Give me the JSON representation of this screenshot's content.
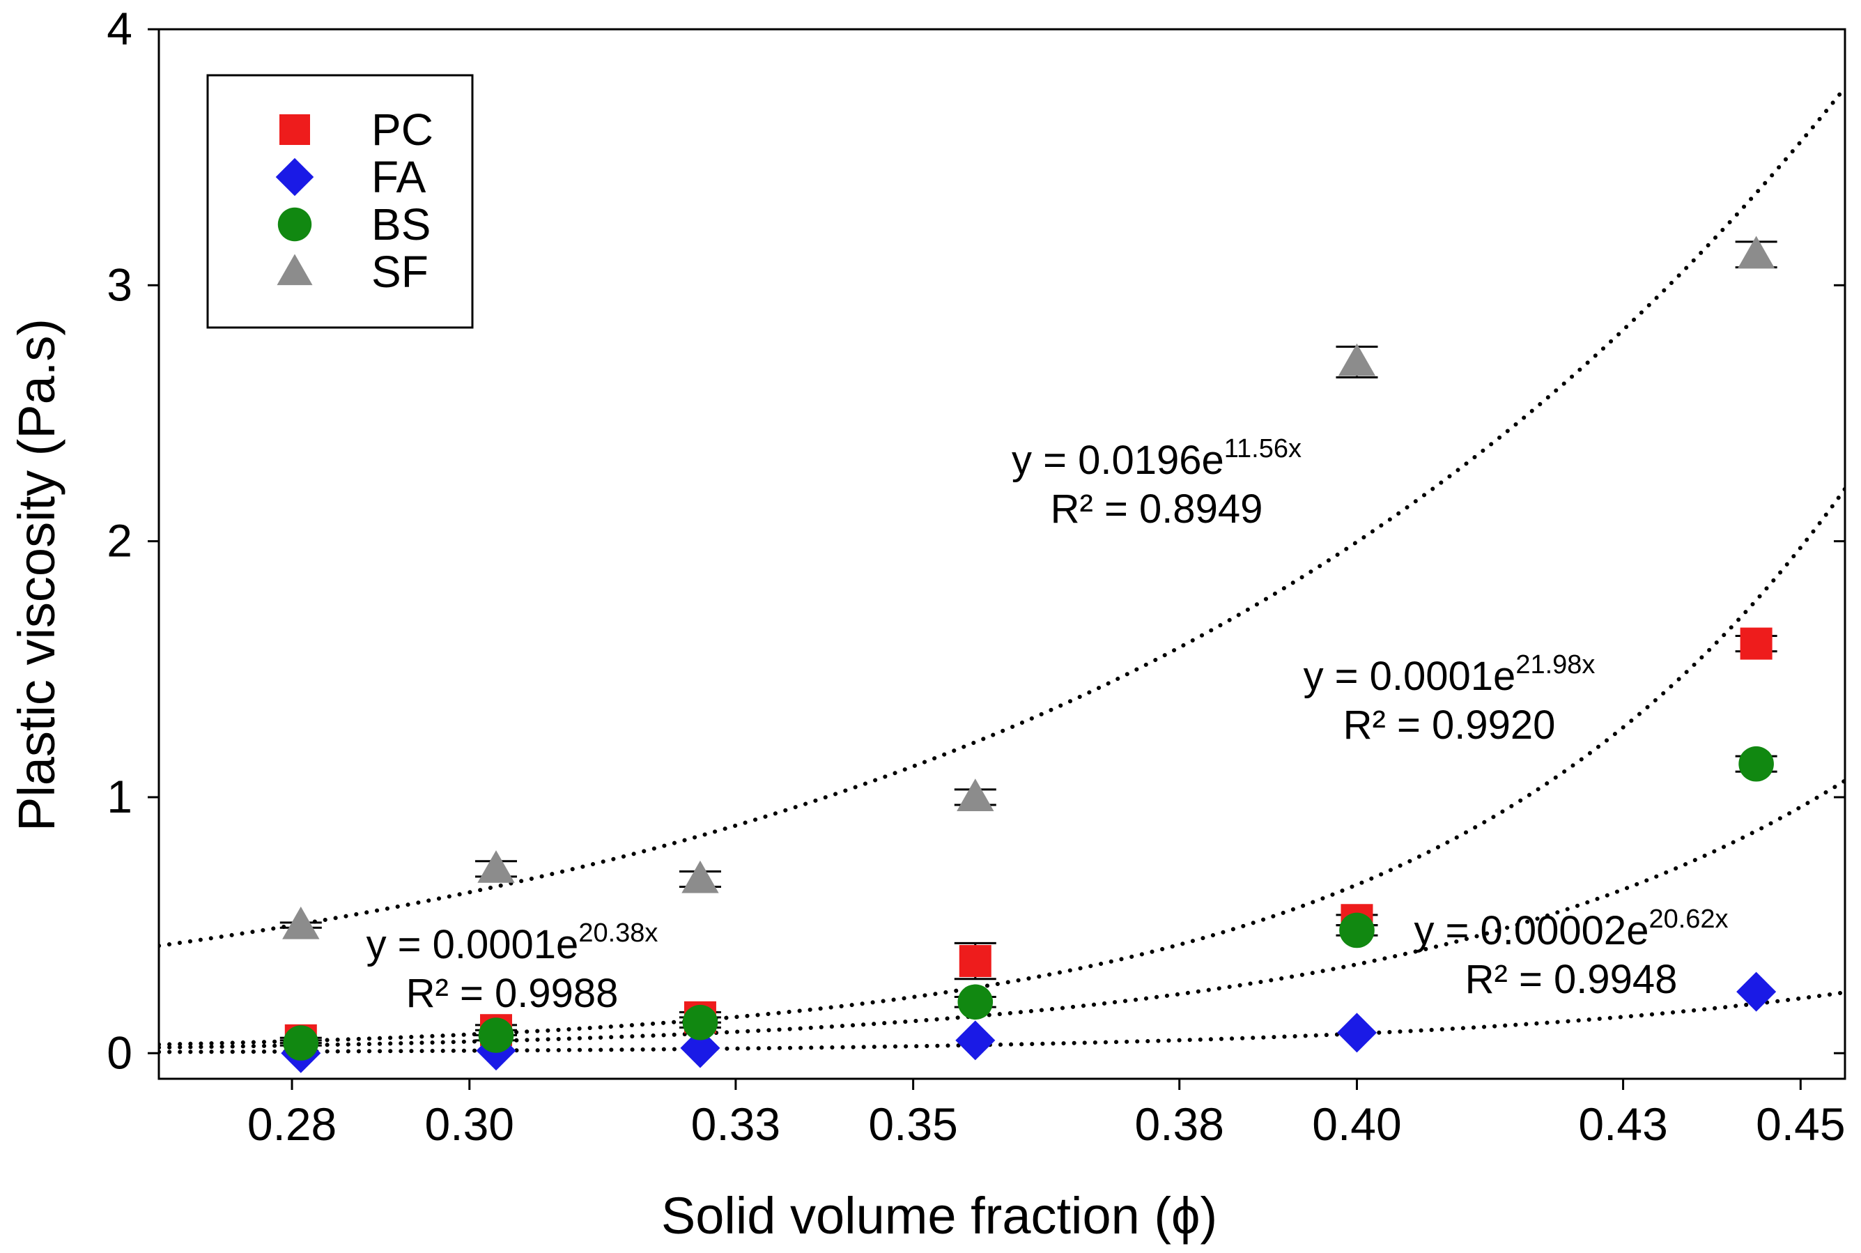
{
  "chart_data": {
    "type": "scatter",
    "title": "",
    "xlabel": "Solid volume fraction (ϕ)",
    "ylabel": "Plastic viscosity (Pa.s)",
    "xlim": [
      0.265,
      0.455
    ],
    "ylim": [
      -0.1,
      4.0
    ],
    "x_ticks": [
      0.28,
      0.3,
      0.33,
      0.35,
      0.38,
      0.4,
      0.43,
      0.45
    ],
    "x_tick_labels": [
      "0.28",
      "0.30",
      "0.33",
      "0.35",
      "0.38",
      "0.40",
      "0.43",
      "0.45"
    ],
    "y_ticks": [
      0,
      1,
      2,
      3,
      4
    ],
    "y_tick_labels": [
      "0",
      "1",
      "2",
      "3",
      "4"
    ],
    "legend_position": "top-left",
    "x": [
      0.281,
      0.303,
      0.326,
      0.357,
      0.4,
      0.445
    ],
    "series": [
      {
        "name": "PC",
        "marker": "square",
        "color": "#ee1c1c",
        "values": [
          0.05,
          0.09,
          0.14,
          0.36,
          0.52,
          1.6
        ],
        "errors": [
          0.01,
          0.02,
          0.02,
          0.07,
          0.02,
          0.03
        ],
        "trend": {
          "a": 0.0001,
          "b": 21.98,
          "equation_prefix": "y = 0.0001e",
          "exponent": "21.98x",
          "r2": "R² = 0.9920"
        }
      },
      {
        "name": "FA",
        "marker": "diamond",
        "color": "#1a1ae6",
        "values": [
          0.0,
          0.01,
          0.02,
          0.05,
          0.08,
          0.24
        ],
        "errors": [
          0,
          0,
          0,
          0,
          0,
          0
        ],
        "trend": {
          "a": 2e-05,
          "b": 20.62,
          "equation_prefix": "y = 0.00002e",
          "exponent": "20.62x",
          "r2": "R² = 0.9948"
        }
      },
      {
        "name": "BS",
        "marker": "circle",
        "color": "#118811",
        "values": [
          0.04,
          0.07,
          0.12,
          0.2,
          0.48,
          1.13
        ],
        "errors": [
          0.01,
          0.02,
          0.02,
          0.02,
          0.02,
          0.03
        ],
        "trend": {
          "a": 0.0001,
          "b": 20.38,
          "equation_prefix": "y = 0.0001e",
          "exponent": "20.38x",
          "r2": "R² = 0.9988"
        }
      },
      {
        "name": "SF",
        "marker": "triangle",
        "color": "#8c8c8c",
        "values": [
          0.5,
          0.72,
          0.68,
          1.0,
          2.7,
          3.12
        ],
        "errors": [
          0.01,
          0.03,
          0.03,
          0.03,
          0.06,
          0.05
        ],
        "trend": {
          "a": 0.0196,
          "b": 11.56,
          "equation_prefix": "y = 0.0196e",
          "exponent": "11.56x",
          "r2": "R² = 0.8949"
        }
      }
    ]
  }
}
